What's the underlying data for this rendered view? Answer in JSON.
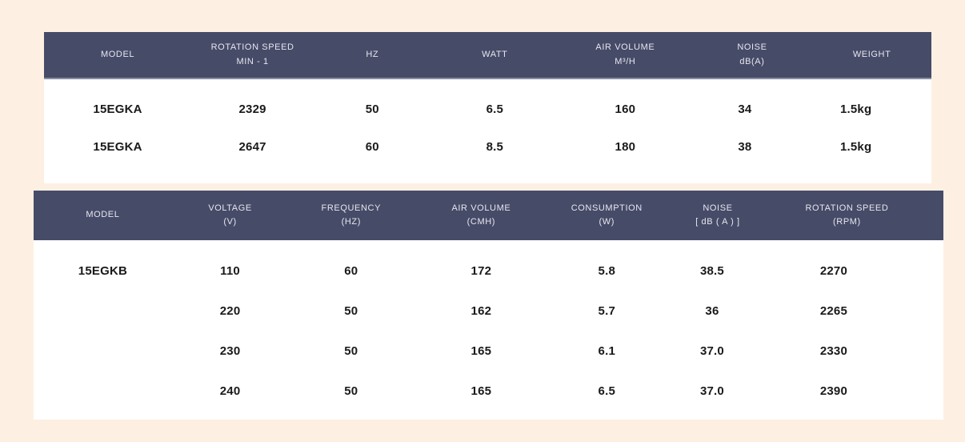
{
  "page": {
    "background_color": "#fdf0e2",
    "header_bg_color": "#464b68",
    "header_text_color": "#e7e7ef",
    "body_bg_color": "#ffffff",
    "data_text_color": "#1a1a1a",
    "header_divider_color": "#8a8ea0"
  },
  "table1": {
    "columns": [
      {
        "label": "MODEL",
        "sub": ""
      },
      {
        "label": "ROTATION SPEED",
        "sub": "MIN - 1"
      },
      {
        "label": "HZ",
        "sub": ""
      },
      {
        "label": "WATT",
        "sub": ""
      },
      {
        "label": "AIR VOLUME",
        "sub": "M³/H"
      },
      {
        "label": "NOISE",
        "sub": "dB(A)"
      },
      {
        "label": "WEIGHT",
        "sub": ""
      }
    ],
    "rows": [
      [
        "15EGKA",
        "2329",
        "50",
        "6.5",
        "160",
        "34",
        "1.5kg"
      ],
      [
        "15EGKA",
        "2647",
        "60",
        "8.5",
        "180",
        "38",
        "1.5kg"
      ]
    ]
  },
  "table2": {
    "columns": [
      {
        "label": "MODEL",
        "sub": ""
      },
      {
        "label": "VOLTAGE",
        "sub": "(V)"
      },
      {
        "label": "FREQUENCY",
        "sub": "(HZ)"
      },
      {
        "label": "AIR VOLUME",
        "sub": "(CMH)"
      },
      {
        "label": "CONSUMPTION",
        "sub": "(W)"
      },
      {
        "label": "NOISE",
        "sub": "[ dB ( A ) ]"
      },
      {
        "label": "ROTATION SPEED",
        "sub": "(RPM)"
      }
    ],
    "rows": [
      [
        "15EGKB",
        "110",
        "60",
        "172",
        "5.8",
        "38.5",
        "2270"
      ],
      [
        "",
        "220",
        "50",
        "162",
        "5.7",
        "36",
        "2265"
      ],
      [
        "",
        "230",
        "50",
        "165",
        "6.1",
        "37.0",
        "2330"
      ],
      [
        "",
        "240",
        "50",
        "165",
        "6.5",
        "37.0",
        "2390"
      ]
    ]
  }
}
